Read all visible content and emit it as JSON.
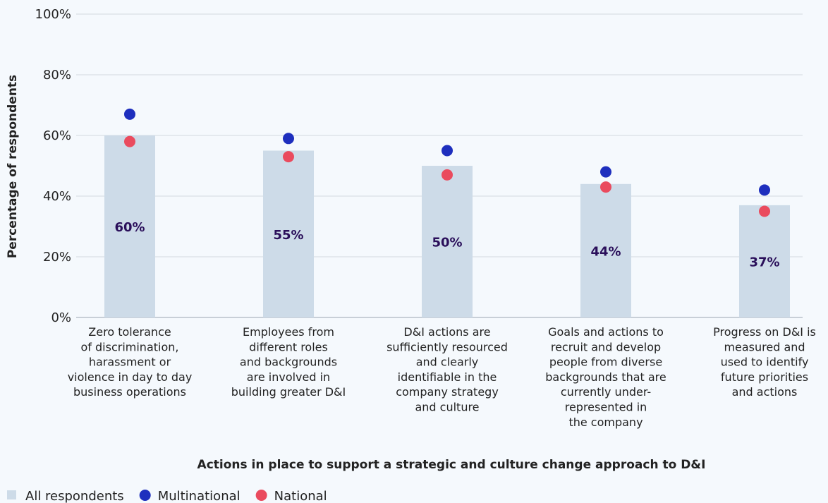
{
  "chart_data": {
    "type": "bar",
    "xlabel": "Actions in place to support a strategic and culture change approach to D&I",
    "ylabel": "Percentage of respondents",
    "ylim": [
      0,
      100
    ],
    "yticks": [
      "0%",
      "20%",
      "40%",
      "60%",
      "80%",
      "100%"
    ],
    "grid": true,
    "legend_position": "bottom-left",
    "categories": [
      "Zero tolerance of discrimination, harassment or violence in day to day business operations",
      "Employees from different roles and backgrounds are involved in building greater D&I",
      "D&I actions are sufficiently resourced and clearly identifiable in the company strategy and culture",
      "Goals and actions to recruit and develop people from diverse backgrounds that are currently under-represented in the company",
      "Progress on D&I is measured and used to identify future priorities and actions"
    ],
    "category_lines": [
      [
        "Zero tolerance",
        "of discrimination,",
        "harassment or",
        "violence in day to day",
        "business operations"
      ],
      [
        "Employees from",
        "different roles",
        "and backgrounds",
        "are involved in",
        "building greater D&I"
      ],
      [
        "D&I actions are",
        "sufficiently resourced",
        "and clearly",
        "identifiable in the",
        "company strategy",
        "and culture"
      ],
      [
        "Goals and actions to",
        "recruit and develop",
        "people from diverse",
        "backgrounds that are",
        "currently under-",
        "represented in",
        "the company"
      ],
      [
        "Progress on D&I is",
        "measured and",
        "used to identify",
        "future priorities",
        "and actions"
      ]
    ],
    "series": [
      {
        "name": "All respondents",
        "kind": "bar",
        "color": "#cddbe8",
        "values": [
          60,
          55,
          50,
          44,
          37
        ],
        "labels": [
          "60%",
          "55%",
          "50%",
          "44%",
          "37%"
        ]
      },
      {
        "name": "Multinational",
        "kind": "dot",
        "color": "#1e2fbe",
        "values": [
          67,
          59,
          55,
          48,
          42
        ]
      },
      {
        "name": "National",
        "kind": "dot",
        "color": "#ea4b5e",
        "values": [
          58,
          53,
          47,
          43,
          35
        ]
      }
    ]
  }
}
